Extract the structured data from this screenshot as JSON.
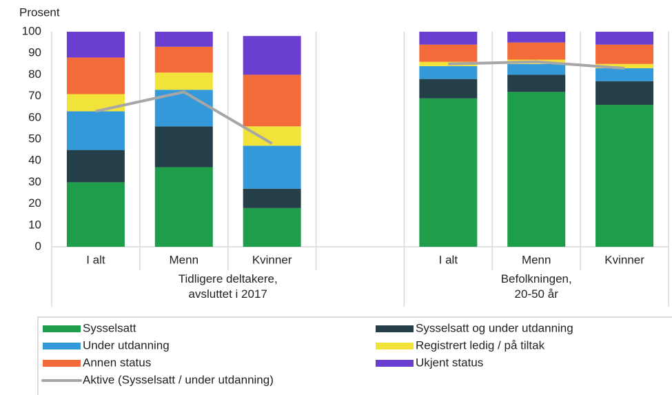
{
  "chart_data": {
    "type": "bar",
    "y_label": "Prosent",
    "categories": [
      "I alt",
      "Menn",
      "Kvinner",
      null,
      "I alt",
      "Menn",
      "Kvinner"
    ],
    "groups": [
      "Tidligere deltakere,\navsluttet i 2017",
      "Befolkningen,\n20-50 år"
    ],
    "ylim": [
      0,
      100
    ],
    "yticks": [
      0,
      10,
      20,
      30,
      40,
      50,
      60,
      70,
      80,
      90,
      100
    ],
    "series": [
      {
        "name": "Sysselsatt",
        "color": "#1e9e4a",
        "values": [
          30,
          37,
          18,
          null,
          69,
          72,
          66
        ]
      },
      {
        "name": "Sysselsatt og under utdanning",
        "color": "#243f48",
        "values": [
          15,
          19,
          9,
          null,
          9,
          8,
          11
        ]
      },
      {
        "name": "Under utdanning",
        "color": "#3399d9",
        "values": [
          18,
          17,
          20,
          null,
          6,
          5,
          6
        ]
      },
      {
        "name": "Registrert ledig / på tiltak",
        "color": "#f2e33b",
        "values": [
          8,
          8,
          9,
          null,
          2,
          2,
          2
        ]
      },
      {
        "name": "Annen status",
        "color": "#f26b38",
        "values": [
          17,
          12,
          24,
          null,
          8,
          8,
          9
        ]
      },
      {
        "name": "Ukjent status",
        "color": "#6a3ed1",
        "values": [
          12,
          7,
          18,
          null,
          6,
          5,
          6
        ]
      },
      {
        "name": "Aktive (Sysselsatt / under utdanning)",
        "type": "line",
        "color": "#a6a6a6",
        "values": [
          63,
          72,
          48,
          null,
          85,
          86,
          83
        ]
      }
    ]
  }
}
